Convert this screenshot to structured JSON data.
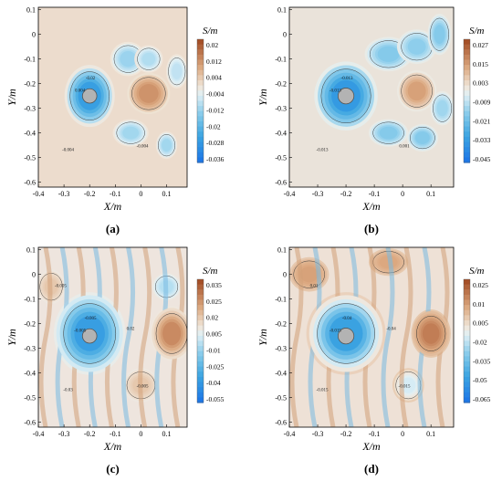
{
  "figure": {
    "panels": [
      {
        "id": "a",
        "label": "(a)",
        "xlabel": "X/m",
        "ylabel": "Y/m",
        "xticks": [
          -0.4,
          -0.3,
          -0.2,
          -0.1,
          0,
          0.1
        ],
        "yticks": [
          0.1,
          0,
          -0.1,
          -0.2,
          -0.3,
          -0.4,
          -0.5,
          -0.6
        ],
        "xlim": [
          -0.4,
          0.18
        ],
        "ylim": [
          -0.62,
          0.11
        ],
        "colorbar": {
          "title": "S/m",
          "ticks": [
            "0.02",
            "0.012",
            "0.004",
            "-0.004",
            "-0.012",
            "-0.02",
            "-0.028",
            "-0.036"
          ],
          "min": -0.04,
          "max": 0.024
        },
        "contour_labels": [
          "0.004",
          "-0.02",
          "-0.004",
          "-0.004"
        ],
        "background": "#ecdccd",
        "cylinder": {
          "x": -0.2,
          "y": -0.25,
          "r": 0.028
        }
      },
      {
        "id": "b",
        "label": "(b)",
        "xlabel": "X/m",
        "ylabel": "Y/m",
        "xticks": [
          -0.4,
          -0.3,
          -0.2,
          -0.1,
          0,
          0.1
        ],
        "yticks": [
          0.1,
          0,
          -0.1,
          -0.2,
          -0.3,
          -0.4,
          -0.5,
          -0.6
        ],
        "xlim": [
          -0.4,
          0.18
        ],
        "ylim": [
          -0.62,
          0.11
        ],
        "colorbar": {
          "title": "S/m",
          "ticks": [
            "0.027",
            "0.015",
            "0.003",
            "-0.009",
            "-0.021",
            "-0.033",
            "-0.045"
          ],
          "min": -0.048,
          "max": 0.033
        },
        "contour_labels": [
          "-0.013",
          "-0.013",
          "0.001",
          "-0.013"
        ],
        "background": "#eae3da",
        "cylinder": {
          "x": -0.2,
          "y": -0.25,
          "r": 0.028
        }
      },
      {
        "id": "c",
        "label": "(c)",
        "xlabel": "X/m",
        "ylabel": "Y/m",
        "xticks": [
          -0.4,
          -0.3,
          -0.2,
          -0.1,
          0,
          0.1
        ],
        "yticks": [
          0.1,
          0,
          -0.1,
          -0.2,
          -0.3,
          -0.4,
          -0.5,
          -0.6
        ],
        "xlim": [
          -0.4,
          0.18
        ],
        "ylim": [
          -0.62,
          0.11
        ],
        "colorbar": {
          "title": "S/m",
          "ticks": [
            "0.035",
            "0.025",
            "0.02",
            "0.005",
            "-0.01",
            "-0.025",
            "-0.04",
            "-0.055"
          ],
          "min": -0.06,
          "max": 0.04
        },
        "contour_labels": [
          "-0.005",
          "-0.005",
          "-0.005",
          "-0.03",
          "0.02",
          "-0.005"
        ],
        "background": "#eee5de",
        "cylinder": {
          "x": -0.2,
          "y": -0.25,
          "r": 0.028
        }
      },
      {
        "id": "d",
        "label": "(d)",
        "xlabel": "X/m",
        "ylabel": "Y/m",
        "xticks": [
          -0.4,
          -0.3,
          -0.2,
          -0.1,
          0,
          0.1
        ],
        "yticks": [
          0.1,
          0,
          -0.1,
          -0.2,
          -0.3,
          -0.4,
          -0.5,
          -0.6
        ],
        "xlim": [
          -0.4,
          0.18
        ],
        "ylim": [
          -0.62,
          0.11
        ],
        "colorbar": {
          "title": "S/m",
          "ticks": [
            "0.025",
            "0.01",
            "0.005",
            "-0.02",
            "-0.035",
            "-0.05",
            "-0.065"
          ],
          "min": -0.07,
          "max": 0.03
        },
        "contour_labels": [
          "-0.015",
          "-0.04",
          "-0.015",
          "-0.015",
          "-0.04",
          "0.01"
        ],
        "background": "#eee1d6",
        "cylinder": {
          "x": -0.2,
          "y": -0.25,
          "r": 0.028
        }
      }
    ]
  },
  "chart_data": [
    {
      "type": "heatmap",
      "panel": "(a)",
      "xlabel": "X/m",
      "ylabel": "Y/m",
      "xlim": [
        -0.4,
        0.18
      ],
      "ylim": [
        -0.62,
        0.11
      ],
      "colorbar_title": "S/m",
      "colorbar_ticks": [
        0.02,
        0.012,
        0.004,
        -0.004,
        -0.012,
        -0.02,
        -0.028,
        -0.036
      ],
      "features": [
        {
          "type": "trough",
          "x": -0.2,
          "y": -0.25,
          "amp": -0.034,
          "sx": 0.07,
          "sy": 0.09
        },
        {
          "type": "crest",
          "x": 0.03,
          "y": -0.24,
          "amp": 0.016,
          "sx": 0.06,
          "sy": 0.06
        },
        {
          "type": "trough",
          "x": -0.05,
          "y": -0.1,
          "amp": -0.015,
          "sx": 0.05,
          "sy": 0.05
        },
        {
          "type": "trough",
          "x": 0.03,
          "y": -0.1,
          "amp": -0.012,
          "sx": 0.04,
          "sy": 0.04
        },
        {
          "type": "trough",
          "x": -0.04,
          "y": -0.4,
          "amp": -0.014,
          "sx": 0.05,
          "sy": 0.04
        },
        {
          "type": "trough",
          "x": 0.1,
          "y": -0.45,
          "amp": -0.014,
          "sx": 0.03,
          "sy": 0.04
        },
        {
          "type": "trough",
          "x": 0.14,
          "y": -0.15,
          "amp": -0.01,
          "sx": 0.03,
          "sy": 0.05
        }
      ]
    },
    {
      "type": "heatmap",
      "panel": "(b)",
      "xlabel": "X/m",
      "ylabel": "Y/m",
      "xlim": [
        -0.4,
        0.18
      ],
      "ylim": [
        -0.62,
        0.11
      ],
      "colorbar_title": "S/m",
      "colorbar_ticks": [
        0.027,
        0.015,
        0.003,
        -0.009,
        -0.021,
        -0.033,
        -0.045
      ],
      "features": [
        {
          "type": "trough",
          "x": -0.2,
          "y": -0.25,
          "amp": -0.042,
          "sx": 0.08,
          "sy": 0.1
        },
        {
          "type": "crest",
          "x": 0.05,
          "y": -0.23,
          "amp": 0.02,
          "sx": 0.05,
          "sy": 0.06
        },
        {
          "type": "trough",
          "x": -0.05,
          "y": -0.08,
          "amp": -0.02,
          "sx": 0.06,
          "sy": 0.05
        },
        {
          "type": "trough",
          "x": 0.05,
          "y": -0.05,
          "amp": -0.018,
          "sx": 0.05,
          "sy": 0.05
        },
        {
          "type": "trough",
          "x": 0.13,
          "y": 0.0,
          "amp": -0.02,
          "sx": 0.03,
          "sy": 0.06
        },
        {
          "type": "trough",
          "x": -0.05,
          "y": -0.4,
          "amp": -0.02,
          "sx": 0.05,
          "sy": 0.04
        },
        {
          "type": "trough",
          "x": 0.07,
          "y": -0.42,
          "amp": -0.02,
          "sx": 0.04,
          "sy": 0.04
        },
        {
          "type": "trough",
          "x": 0.14,
          "y": -0.3,
          "amp": -0.015,
          "sx": 0.03,
          "sy": 0.05
        }
      ]
    },
    {
      "type": "heatmap",
      "panel": "(c)",
      "xlabel": "X/m",
      "ylabel": "Y/m",
      "xlim": [
        -0.4,
        0.18
      ],
      "ylim": [
        -0.62,
        0.11
      ],
      "colorbar_title": "S/m",
      "colorbar_ticks": [
        0.035,
        0.025,
        0.02,
        0.005,
        -0.01,
        -0.025,
        -0.04,
        -0.055
      ],
      "features": [
        {
          "type": "trough",
          "x": -0.2,
          "y": -0.24,
          "amp": -0.05,
          "sx": 0.1,
          "sy": 0.12
        },
        {
          "type": "crest",
          "x": 0.12,
          "y": -0.24,
          "amp": 0.03,
          "sx": 0.06,
          "sy": 0.08
        },
        {
          "type": "crest",
          "x": 0.0,
          "y": -0.45,
          "amp": 0.012,
          "sx": 0.05,
          "sy": 0.05
        },
        {
          "type": "crest",
          "x": -0.35,
          "y": -0.05,
          "amp": 0.012,
          "sx": 0.04,
          "sy": 0.05
        },
        {
          "type": "trough",
          "x": 0.1,
          "y": -0.05,
          "amp": -0.015,
          "sx": 0.04,
          "sy": 0.04
        }
      ]
    },
    {
      "type": "heatmap",
      "panel": "(d)",
      "xlabel": "X/m",
      "ylabel": "Y/m",
      "xlim": [
        -0.4,
        0.18
      ],
      "ylim": [
        -0.62,
        0.11
      ],
      "colorbar_title": "S/m",
      "colorbar_ticks": [
        0.025,
        0.01,
        0.005,
        -0.02,
        -0.035,
        -0.05,
        -0.065
      ],
      "features": [
        {
          "type": "trough",
          "x": -0.2,
          "y": -0.24,
          "amp": -0.06,
          "sx": 0.1,
          "sy": 0.12
        },
        {
          "type": "crest",
          "x": 0.1,
          "y": -0.24,
          "amp": 0.022,
          "sx": 0.05,
          "sy": 0.07
        },
        {
          "type": "crest",
          "x": -0.33,
          "y": 0.0,
          "amp": 0.012,
          "sx": 0.05,
          "sy": 0.05
        },
        {
          "type": "crest",
          "x": -0.05,
          "y": 0.05,
          "amp": 0.01,
          "sx": 0.05,
          "sy": 0.04
        },
        {
          "type": "trough",
          "x": 0.02,
          "y": -0.45,
          "amp": -0.02,
          "sx": 0.04,
          "sy": 0.05
        }
      ]
    }
  ]
}
